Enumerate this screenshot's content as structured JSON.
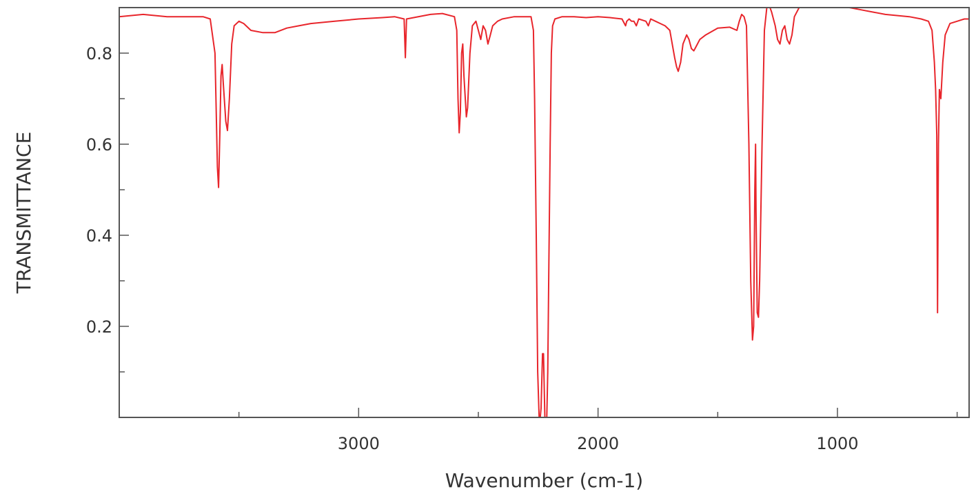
{
  "chart_data": {
    "type": "line",
    "title": "",
    "xlabel": "Wavenumber (cm-1)",
    "ylabel": "TRANSMITTANCE",
    "xlim": [
      4000,
      450
    ],
    "ylim": [
      0,
      0.9
    ],
    "x_ticks": [
      3000,
      2000,
      1000
    ],
    "x_tick_labels": [
      "3000",
      "2000",
      "1000"
    ],
    "x_minor_ticks": [
      3500,
      2500,
      1500,
      500
    ],
    "y_ticks": [
      0.2,
      0.4,
      0.6,
      0.8
    ],
    "y_tick_labels": [
      "0.2",
      "0.4",
      "0.6",
      "0.8"
    ],
    "y_minor_ticks": [
      0.1,
      0.3,
      0.5,
      0.7
    ],
    "grid": false,
    "series": [
      {
        "color": "#e8252b",
        "points": [
          [
            4000,
            0.88
          ],
          [
            3900,
            0.885
          ],
          [
            3800,
            0.88
          ],
          [
            3650,
            0.88
          ],
          [
            3620,
            0.875
          ],
          [
            3600,
            0.8
          ],
          [
            3590,
            0.55
          ],
          [
            3585,
            0.505
          ],
          [
            3580,
            0.62
          ],
          [
            3575,
            0.75
          ],
          [
            3570,
            0.775
          ],
          [
            3565,
            0.73
          ],
          [
            3555,
            0.65
          ],
          [
            3548,
            0.63
          ],
          [
            3540,
            0.7
          ],
          [
            3530,
            0.82
          ],
          [
            3520,
            0.86
          ],
          [
            3500,
            0.87
          ],
          [
            3480,
            0.865
          ],
          [
            3450,
            0.85
          ],
          [
            3400,
            0.845
          ],
          [
            3350,
            0.845
          ],
          [
            3300,
            0.855
          ],
          [
            3250,
            0.86
          ],
          [
            3200,
            0.865
          ],
          [
            3100,
            0.87
          ],
          [
            3000,
            0.875
          ],
          [
            2900,
            0.878
          ],
          [
            2850,
            0.88
          ],
          [
            2810,
            0.875
          ],
          [
            2805,
            0.79
          ],
          [
            2800,
            0.875
          ],
          [
            2700,
            0.885
          ],
          [
            2650,
            0.887
          ],
          [
            2600,
            0.88
          ],
          [
            2590,
            0.85
          ],
          [
            2585,
            0.7
          ],
          [
            2580,
            0.625
          ],
          [
            2575,
            0.67
          ],
          [
            2570,
            0.8
          ],
          [
            2565,
            0.82
          ],
          [
            2560,
            0.75
          ],
          [
            2550,
            0.66
          ],
          [
            2545,
            0.68
          ],
          [
            2535,
            0.8
          ],
          [
            2525,
            0.86
          ],
          [
            2510,
            0.87
          ],
          [
            2500,
            0.85
          ],
          [
            2490,
            0.83
          ],
          [
            2480,
            0.86
          ],
          [
            2470,
            0.85
          ],
          [
            2460,
            0.82
          ],
          [
            2450,
            0.84
          ],
          [
            2440,
            0.86
          ],
          [
            2420,
            0.87
          ],
          [
            2400,
            0.875
          ],
          [
            2350,
            0.88
          ],
          [
            2300,
            0.88
          ],
          [
            2280,
            0.88
          ],
          [
            2270,
            0.85
          ],
          [
            2265,
            0.7
          ],
          [
            2258,
            0.4
          ],
          [
            2252,
            0.1
          ],
          [
            2245,
            -0.02
          ],
          [
            2238,
            0.02
          ],
          [
            2232,
            0.14
          ],
          [
            2228,
            0.14
          ],
          [
            2222,
            0.0
          ],
          [
            2215,
            -0.02
          ],
          [
            2210,
            0.1
          ],
          [
            2205,
            0.35
          ],
          [
            2200,
            0.6
          ],
          [
            2195,
            0.8
          ],
          [
            2190,
            0.86
          ],
          [
            2180,
            0.875
          ],
          [
            2150,
            0.88
          ],
          [
            2100,
            0.88
          ],
          [
            2050,
            0.878
          ],
          [
            2000,
            0.88
          ],
          [
            1950,
            0.878
          ],
          [
            1900,
            0.875
          ],
          [
            1885,
            0.86
          ],
          [
            1880,
            0.87
          ],
          [
            1870,
            0.875
          ],
          [
            1860,
            0.87
          ],
          [
            1850,
            0.87
          ],
          [
            1840,
            0.86
          ],
          [
            1830,
            0.875
          ],
          [
            1800,
            0.87
          ],
          [
            1790,
            0.86
          ],
          [
            1780,
            0.875
          ],
          [
            1760,
            0.87
          ],
          [
            1740,
            0.865
          ],
          [
            1720,
            0.86
          ],
          [
            1700,
            0.85
          ],
          [
            1690,
            0.82
          ],
          [
            1680,
            0.79
          ],
          [
            1672,
            0.77
          ],
          [
            1665,
            0.76
          ],
          [
            1655,
            0.78
          ],
          [
            1645,
            0.82
          ],
          [
            1630,
            0.84
          ],
          [
            1620,
            0.83
          ],
          [
            1610,
            0.81
          ],
          [
            1600,
            0.805
          ],
          [
            1590,
            0.815
          ],
          [
            1575,
            0.83
          ],
          [
            1550,
            0.84
          ],
          [
            1500,
            0.855
          ],
          [
            1450,
            0.857
          ],
          [
            1420,
            0.85
          ],
          [
            1410,
            0.87
          ],
          [
            1400,
            0.885
          ],
          [
            1390,
            0.88
          ],
          [
            1380,
            0.86
          ],
          [
            1370,
            0.6
          ],
          [
            1362,
            0.3
          ],
          [
            1355,
            0.17
          ],
          [
            1350,
            0.2
          ],
          [
            1345,
            0.5
          ],
          [
            1342,
            0.6
          ],
          [
            1340,
            0.45
          ],
          [
            1335,
            0.23
          ],
          [
            1330,
            0.22
          ],
          [
            1325,
            0.3
          ],
          [
            1315,
            0.6
          ],
          [
            1305,
            0.85
          ],
          [
            1295,
            0.9
          ],
          [
            1285,
            0.905
          ],
          [
            1275,
            0.89
          ],
          [
            1260,
            0.86
          ],
          [
            1250,
            0.83
          ],
          [
            1240,
            0.82
          ],
          [
            1230,
            0.85
          ],
          [
            1220,
            0.86
          ],
          [
            1210,
            0.83
          ],
          [
            1200,
            0.82
          ],
          [
            1190,
            0.84
          ],
          [
            1180,
            0.88
          ],
          [
            1160,
            0.9
          ],
          [
            1140,
            0.91
          ],
          [
            1100,
            0.915
          ],
          [
            1080,
            0.93
          ],
          [
            1060,
            0.92
          ],
          [
            1040,
            0.91
          ],
          [
            1000,
            0.905
          ],
          [
            950,
            0.9
          ],
          [
            900,
            0.895
          ],
          [
            850,
            0.89
          ],
          [
            800,
            0.885
          ],
          [
            700,
            0.88
          ],
          [
            650,
            0.875
          ],
          [
            620,
            0.87
          ],
          [
            605,
            0.85
          ],
          [
            595,
            0.78
          ],
          [
            590,
            0.72
          ],
          [
            585,
            0.62
          ],
          [
            582,
            0.23
          ],
          [
            578,
            0.6
          ],
          [
            574,
            0.72
          ],
          [
            568,
            0.7
          ],
          [
            560,
            0.78
          ],
          [
            550,
            0.84
          ],
          [
            530,
            0.865
          ],
          [
            500,
            0.87
          ],
          [
            470,
            0.875
          ],
          [
            450,
            0.875
          ]
        ]
      }
    ],
    "colors": {
      "line": "#e8252b",
      "frame": "#555555",
      "text": "#333333"
    }
  }
}
